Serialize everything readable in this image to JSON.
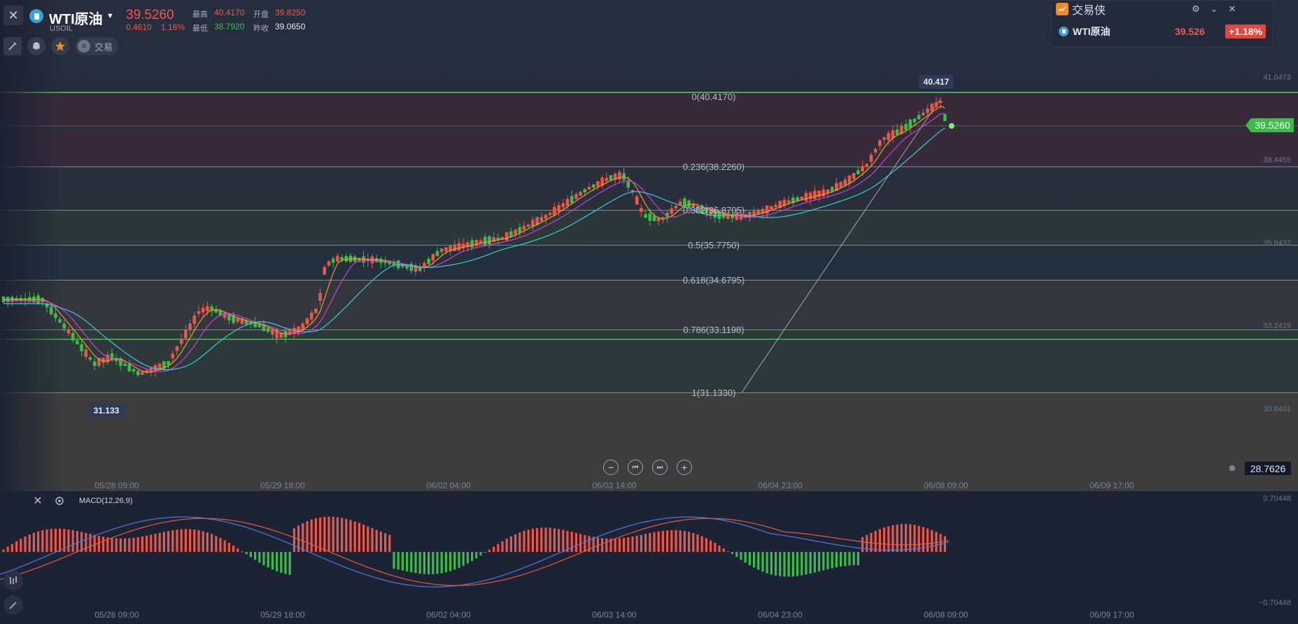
{
  "header": {
    "symbol_name": "WTI原油",
    "symbol_code": "USOIL",
    "last_price": "39.5260",
    "change": "0.4610",
    "change_pct": "1.18%",
    "stats": {
      "high_label": "最高",
      "high": "40.4170",
      "open_label": "开盘",
      "open": "39.8250",
      "low_label": "最低",
      "low": "38.7920",
      "prev_close_label": "昨收",
      "prev_close": "39.0650"
    }
  },
  "toolbar": {
    "trade_label": "交易",
    "trade_glyph": "≡"
  },
  "popup": {
    "title": "交易侠",
    "symbol_name": "WTI原油",
    "price": "39.526",
    "change_pct": "+1.18%"
  },
  "price_axis": [
    "41.0473",
    "38.4455",
    "35.8437",
    "33.2419",
    "30.6401"
  ],
  "current_price_tag": "39.5260",
  "crosshair_price": "28.7626",
  "high_marker": "40.417",
  "low_marker": "31.133",
  "fib_levels": [
    {
      "label": "0(40.4170)"
    },
    {
      "label": "0.236(38.2260)"
    },
    {
      "label": "0.382(36.8705)"
    },
    {
      "label": "0.5(35.7750)"
    },
    {
      "label": "0.618(34.6795)"
    },
    {
      "label": "0.786(33.1198)"
    },
    {
      "label": "1(31.1330)"
    }
  ],
  "time_axis": [
    "05/28 09:00",
    "05/29 18:00",
    "06/02 04:00",
    "06/03 14:00",
    "06/04 23:00",
    "06/08 09:00",
    "06/09 17:00"
  ],
  "macd": {
    "label": "MACD(12,26,9)",
    "axis_top": "0.70448",
    "axis_bottom": "−0.70448"
  },
  "colors": {
    "up": "#e9564a",
    "down": "#3dbb4a",
    "ma_fast": "#f29a2e",
    "ma_mid": "#d23cd2",
    "ma_slow": "#3fc8d8",
    "macd_line": "#4a7be0",
    "signal_line": "#e9564a"
  },
  "icons": [
    "close-icon",
    "chevron-down-icon",
    "pencil-tool-icon",
    "bell-icon",
    "star-icon",
    "trade-icon",
    "popup-logo-icon",
    "gear-icon",
    "zoom-out-icon",
    "skip-back-icon",
    "skip-forward-icon",
    "zoom-in-icon"
  ]
}
